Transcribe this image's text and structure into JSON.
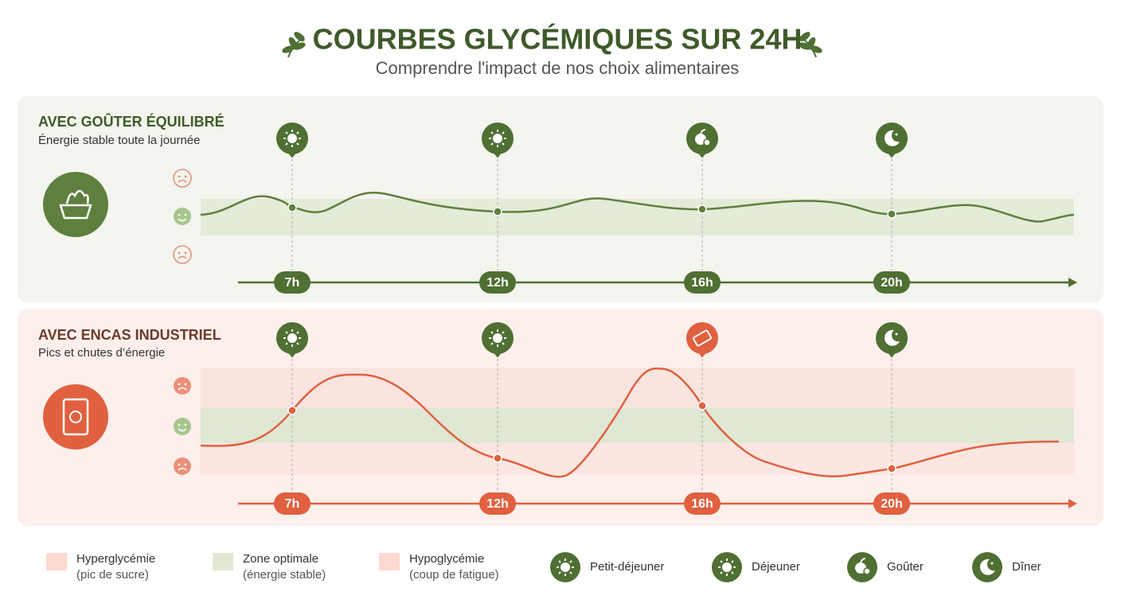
{
  "header": {
    "title": "COURBES GLYCÉMIQUES SUR 24H",
    "subtitle": "Comprendre l'impact de nos choix alimentaires"
  },
  "panels": [
    {
      "title": "AVEC GOÛTER ÉQUILIBRÉ",
      "subtitle": "Énergie stable toute la journée",
      "times": [
        "7h",
        "12h",
        "16h",
        "20h"
      ]
    },
    {
      "title": "AVEC ENCAS INDUSTRIEL",
      "subtitle": "Pics et chutes d’énergie",
      "times": [
        "7h",
        "12h",
        "16h",
        "20h"
      ]
    }
  ],
  "legend": [
    {
      "label": "Hyperglycémie",
      "note": "(pic de sucre)"
    },
    {
      "label": "Zone optimale",
      "note": "(énergie stable)"
    },
    {
      "label": "Hypoglycémie",
      "note": "(coup de fatigue)"
    },
    {
      "label": "Petit-déjeuner"
    },
    {
      "label": "Déjeuner"
    },
    {
      "label": "Goûter"
    },
    {
      "label": "Dîner"
    }
  ]
}
